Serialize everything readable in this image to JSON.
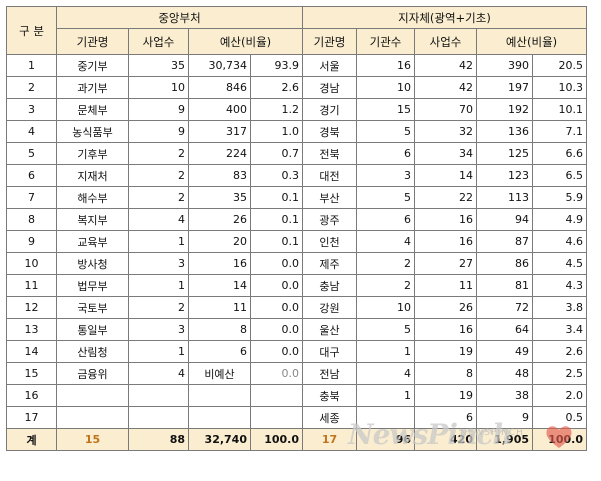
{
  "table": {
    "row_header": "구 분",
    "group_central": "중앙부처",
    "group_local": "지자체(광역+기초)",
    "sub_central": [
      "기관명",
      "사업수",
      "예산(비율)"
    ],
    "sub_local": [
      "기관명",
      "기관수",
      "사업수",
      "예산(비율)"
    ],
    "rows": [
      {
        "no": "1",
        "c_name": "중기부",
        "c_cnt": "35",
        "c_bud": "30,734",
        "c_pct": "93.9",
        "l_name": "서울",
        "l_org": "16",
        "l_cnt": "42",
        "l_bud": "390",
        "l_pct": "20.5"
      },
      {
        "no": "2",
        "c_name": "과기부",
        "c_cnt": "10",
        "c_bud": "846",
        "c_pct": "2.6",
        "l_name": "경남",
        "l_org": "10",
        "l_cnt": "42",
        "l_bud": "197",
        "l_pct": "10.3"
      },
      {
        "no": "3",
        "c_name": "문체부",
        "c_cnt": "9",
        "c_bud": "400",
        "c_pct": "1.2",
        "l_name": "경기",
        "l_org": "15",
        "l_cnt": "70",
        "l_bud": "192",
        "l_pct": "10.1"
      },
      {
        "no": "4",
        "c_name": "농식품부",
        "c_cnt": "9",
        "c_bud": "317",
        "c_pct": "1.0",
        "l_name": "경북",
        "l_org": "5",
        "l_cnt": "32",
        "l_bud": "136",
        "l_pct": "7.1"
      },
      {
        "no": "5",
        "c_name": "기후부",
        "c_cnt": "2",
        "c_bud": "224",
        "c_pct": "0.7",
        "l_name": "전북",
        "l_org": "6",
        "l_cnt": "34",
        "l_bud": "125",
        "l_pct": "6.6"
      },
      {
        "no": "6",
        "c_name": "지재처",
        "c_cnt": "2",
        "c_bud": "83",
        "c_pct": "0.3",
        "l_name": "대전",
        "l_org": "3",
        "l_cnt": "14",
        "l_bud": "123",
        "l_pct": "6.5"
      },
      {
        "no": "7",
        "c_name": "해수부",
        "c_cnt": "2",
        "c_bud": "35",
        "c_pct": "0.1",
        "l_name": "부산",
        "l_org": "5",
        "l_cnt": "22",
        "l_bud": "113",
        "l_pct": "5.9"
      },
      {
        "no": "8",
        "c_name": "복지부",
        "c_cnt": "4",
        "c_bud": "26",
        "c_pct": "0.1",
        "l_name": "광주",
        "l_org": "6",
        "l_cnt": "16",
        "l_bud": "94",
        "l_pct": "4.9"
      },
      {
        "no": "9",
        "c_name": "교육부",
        "c_cnt": "1",
        "c_bud": "20",
        "c_pct": "0.1",
        "l_name": "인천",
        "l_org": "4",
        "l_cnt": "16",
        "l_bud": "87",
        "l_pct": "4.6"
      },
      {
        "no": "10",
        "c_name": "방사청",
        "c_cnt": "3",
        "c_bud": "16",
        "c_pct": "0.0",
        "l_name": "제주",
        "l_org": "2",
        "l_cnt": "27",
        "l_bud": "86",
        "l_pct": "4.5"
      },
      {
        "no": "11",
        "c_name": "법무부",
        "c_cnt": "1",
        "c_bud": "14",
        "c_pct": "0.0",
        "l_name": "충남",
        "l_org": "2",
        "l_cnt": "11",
        "l_bud": "81",
        "l_pct": "4.3"
      },
      {
        "no": "12",
        "c_name": "국토부",
        "c_cnt": "2",
        "c_bud": "11",
        "c_pct": "0.0",
        "l_name": "강원",
        "l_org": "10",
        "l_cnt": "26",
        "l_bud": "72",
        "l_pct": "3.8"
      },
      {
        "no": "13",
        "c_name": "통일부",
        "c_cnt": "3",
        "c_bud": "8",
        "c_pct": "0.0",
        "l_name": "울산",
        "l_org": "5",
        "l_cnt": "16",
        "l_bud": "64",
        "l_pct": "3.4"
      },
      {
        "no": "14",
        "c_name": "산림청",
        "c_cnt": "1",
        "c_bud": "6",
        "c_pct": "0.0",
        "l_name": "대구",
        "l_org": "1",
        "l_cnt": "19",
        "l_bud": "49",
        "l_pct": "2.6"
      },
      {
        "no": "15",
        "c_name": "금융위",
        "c_cnt": "4",
        "c_bud": "비예산",
        "c_pct": "0.0",
        "l_name": "전남",
        "l_org": "4",
        "l_cnt": "8",
        "l_bud": "48",
        "l_pct": "2.5"
      },
      {
        "no": "16",
        "c_name": "",
        "c_cnt": "",
        "c_bud": "",
        "c_pct": "",
        "l_name": "충북",
        "l_org": "1",
        "l_cnt": "19",
        "l_bud": "38",
        "l_pct": "2.0"
      },
      {
        "no": "17",
        "c_name": "",
        "c_cnt": "",
        "c_bud": "",
        "c_pct": "",
        "l_name": "세종",
        "l_org": "",
        "l_cnt": "6",
        "l_bud": "9",
        "l_pct": "0.5"
      }
    ],
    "total": {
      "label": "계",
      "c_name": "15",
      "c_cnt": "88",
      "c_bud": "32,740",
      "c_pct": "100.0",
      "l_name": "17",
      "l_org": "96",
      "l_cnt": "420",
      "l_bud": "1,905",
      "l_pct": "100.0"
    }
  },
  "watermark": {
    "logo": "NewsPinch",
    "tagline": "NEWSPINCH"
  },
  "colors": {
    "header_bg": "#fbeed0",
    "border": "#7a7a7a",
    "total_accent": "#c0731a"
  }
}
